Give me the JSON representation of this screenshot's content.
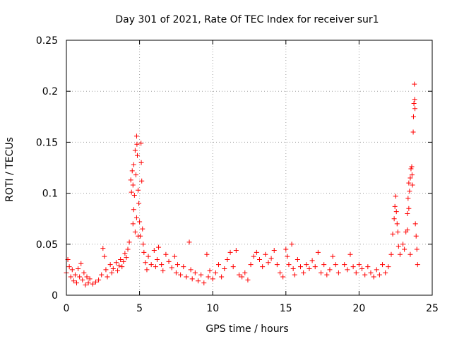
{
  "chart_data": {
    "type": "scatter",
    "title": "Day 301 of 2021, Rate Of TEC Index for receiver sur1",
    "xlabel": "GPS time / hours",
    "ylabel": "ROTI / TECUs",
    "xlim": [
      0,
      25
    ],
    "ylim": [
      0,
      0.25
    ],
    "xticks": [
      0,
      5,
      10,
      15,
      20,
      25
    ],
    "yticks": [
      0,
      0.05,
      0.1,
      0.15,
      0.2,
      0.25
    ],
    "xtick_labels": [
      "0",
      "5",
      "10",
      "15",
      "20",
      "25"
    ],
    "ytick_labels": [
      "0",
      "0.05",
      "0.1",
      "0.15",
      "0.2",
      "0.25"
    ],
    "grid": true,
    "marker": "plus",
    "color": "#ff0000",
    "points": [
      [
        0.0,
        0.022
      ],
      [
        0.1,
        0.035
      ],
      [
        0.2,
        0.028
      ],
      [
        0.3,
        0.018
      ],
      [
        0.4,
        0.025
      ],
      [
        0.5,
        0.014
      ],
      [
        0.6,
        0.02
      ],
      [
        0.7,
        0.012
      ],
      [
        0.8,
        0.026
      ],
      [
        0.9,
        0.018
      ],
      [
        1.0,
        0.031
      ],
      [
        1.1,
        0.015
      ],
      [
        1.2,
        0.022
      ],
      [
        1.3,
        0.01
      ],
      [
        1.4,
        0.018
      ],
      [
        1.5,
        0.012
      ],
      [
        1.6,
        0.016
      ],
      [
        1.8,
        0.011
      ],
      [
        2.0,
        0.013
      ],
      [
        2.2,
        0.015
      ],
      [
        2.4,
        0.02
      ],
      [
        2.5,
        0.046
      ],
      [
        2.6,
        0.038
      ],
      [
        2.7,
        0.025
      ],
      [
        2.8,
        0.018
      ],
      [
        3.0,
        0.03
      ],
      [
        3.1,
        0.022
      ],
      [
        3.2,
        0.026
      ],
      [
        3.4,
        0.032
      ],
      [
        3.5,
        0.024
      ],
      [
        3.6,
        0.029
      ],
      [
        3.7,
        0.035
      ],
      [
        3.8,
        0.028
      ],
      [
        3.9,
        0.033
      ],
      [
        4.0,
        0.041
      ],
      [
        4.1,
        0.037
      ],
      [
        4.2,
        0.045
      ],
      [
        4.3,
        0.052
      ],
      [
        4.4,
        0.113
      ],
      [
        4.45,
        0.101
      ],
      [
        4.5,
        0.122
      ],
      [
        4.55,
        0.108
      ],
      [
        4.6,
        0.128
      ],
      [
        4.65,
        0.098
      ],
      [
        4.7,
        0.142
      ],
      [
        4.75,
        0.118
      ],
      [
        4.8,
        0.156
      ],
      [
        4.82,
        0.148
      ],
      [
        4.85,
        0.137
      ],
      [
        4.9,
        0.103
      ],
      [
        4.95,
        0.09
      ],
      [
        5.0,
        0.072
      ],
      [
        5.05,
        0.058
      ],
      [
        5.1,
        0.149
      ],
      [
        5.12,
        0.13
      ],
      [
        5.15,
        0.112
      ],
      [
        5.2,
        0.065
      ],
      [
        5.25,
        0.05
      ],
      [
        5.3,
        0.042
      ],
      [
        4.55,
        0.07
      ],
      [
        4.6,
        0.084
      ],
      [
        4.7,
        0.062
      ],
      [
        4.8,
        0.076
      ],
      [
        4.9,
        0.058
      ],
      [
        5.4,
        0.032
      ],
      [
        5.5,
        0.025
      ],
      [
        5.6,
        0.038
      ],
      [
        5.8,
        0.03
      ],
      [
        6.0,
        0.044
      ],
      [
        6.1,
        0.028
      ],
      [
        6.2,
        0.035
      ],
      [
        6.3,
        0.047
      ],
      [
        6.5,
        0.03
      ],
      [
        6.6,
        0.024
      ],
      [
        6.8,
        0.04
      ],
      [
        7.0,
        0.033
      ],
      [
        7.2,
        0.027
      ],
      [
        7.4,
        0.038
      ],
      [
        7.5,
        0.022
      ],
      [
        7.6,
        0.03
      ],
      [
        7.8,
        0.02
      ],
      [
        8.0,
        0.028
      ],
      [
        8.2,
        0.018
      ],
      [
        8.4,
        0.052
      ],
      [
        8.5,
        0.025
      ],
      [
        8.6,
        0.016
      ],
      [
        8.8,
        0.022
      ],
      [
        9.0,
        0.014
      ],
      [
        9.2,
        0.02
      ],
      [
        9.4,
        0.012
      ],
      [
        9.6,
        0.04
      ],
      [
        9.7,
        0.018
      ],
      [
        9.8,
        0.024
      ],
      [
        10.0,
        0.016
      ],
      [
        10.2,
        0.022
      ],
      [
        10.4,
        0.03
      ],
      [
        10.6,
        0.018
      ],
      [
        10.8,
        0.026
      ],
      [
        11.0,
        0.035
      ],
      [
        11.2,
        0.042
      ],
      [
        11.4,
        0.028
      ],
      [
        11.6,
        0.044
      ],
      [
        11.8,
        0.02
      ],
      [
        12.0,
        0.018
      ],
      [
        12.2,
        0.022
      ],
      [
        12.4,
        0.015
      ],
      [
        12.6,
        0.03
      ],
      [
        12.8,
        0.038
      ],
      [
        13.0,
        0.042
      ],
      [
        13.2,
        0.035
      ],
      [
        13.4,
        0.028
      ],
      [
        13.6,
        0.04
      ],
      [
        13.8,
        0.032
      ],
      [
        14.0,
        0.036
      ],
      [
        14.2,
        0.044
      ],
      [
        14.4,
        0.03
      ],
      [
        14.6,
        0.022
      ],
      [
        14.8,
        0.018
      ],
      [
        15.0,
        0.045
      ],
      [
        15.1,
        0.038
      ],
      [
        15.2,
        0.03
      ],
      [
        15.4,
        0.05
      ],
      [
        15.5,
        0.026
      ],
      [
        15.6,
        0.02
      ],
      [
        15.8,
        0.035
      ],
      [
        16.0,
        0.028
      ],
      [
        16.2,
        0.022
      ],
      [
        16.4,
        0.03
      ],
      [
        16.6,
        0.026
      ],
      [
        16.8,
        0.034
      ],
      [
        17.0,
        0.028
      ],
      [
        17.2,
        0.042
      ],
      [
        17.4,
        0.022
      ],
      [
        17.6,
        0.03
      ],
      [
        17.8,
        0.02
      ],
      [
        18.0,
        0.025
      ],
      [
        18.2,
        0.038
      ],
      [
        18.4,
        0.03
      ],
      [
        18.6,
        0.022
      ],
      [
        19.0,
        0.03
      ],
      [
        19.2,
        0.025
      ],
      [
        19.4,
        0.04
      ],
      [
        19.6,
        0.028
      ],
      [
        19.8,
        0.022
      ],
      [
        20.0,
        0.03
      ],
      [
        20.2,
        0.026
      ],
      [
        20.4,
        0.02
      ],
      [
        20.6,
        0.028
      ],
      [
        20.8,
        0.022
      ],
      [
        21.0,
        0.018
      ],
      [
        21.2,
        0.025
      ],
      [
        21.4,
        0.02
      ],
      [
        21.6,
        0.03
      ],
      [
        21.8,
        0.022
      ],
      [
        22.0,
        0.028
      ],
      [
        22.2,
        0.04
      ],
      [
        22.3,
        0.06
      ],
      [
        22.4,
        0.075
      ],
      [
        22.45,
        0.087
      ],
      [
        22.5,
        0.097
      ],
      [
        22.55,
        0.082
      ],
      [
        22.6,
        0.07
      ],
      [
        22.65,
        0.062
      ],
      [
        22.7,
        0.048
      ],
      [
        22.8,
        0.04
      ],
      [
        23.0,
        0.05
      ],
      [
        23.1,
        0.045
      ],
      [
        23.2,
        0.062
      ],
      [
        23.3,
        0.08
      ],
      [
        23.35,
        0.095
      ],
      [
        23.4,
        0.11
      ],
      [
        23.45,
        0.102
      ],
      [
        23.5,
        0.115
      ],
      [
        23.55,
        0.124
      ],
      [
        23.6,
        0.126
      ],
      [
        23.62,
        0.118
      ],
      [
        23.65,
        0.108
      ],
      [
        23.7,
        0.16
      ],
      [
        23.72,
        0.175
      ],
      [
        23.75,
        0.188
      ],
      [
        23.78,
        0.207
      ],
      [
        23.8,
        0.192
      ],
      [
        23.82,
        0.183
      ],
      [
        23.85,
        0.07
      ],
      [
        23.9,
        0.058
      ],
      [
        23.95,
        0.045
      ],
      [
        23.5,
        0.04
      ],
      [
        23.4,
        0.085
      ],
      [
        23.3,
        0.064
      ],
      [
        24.0,
        0.03
      ]
    ]
  }
}
